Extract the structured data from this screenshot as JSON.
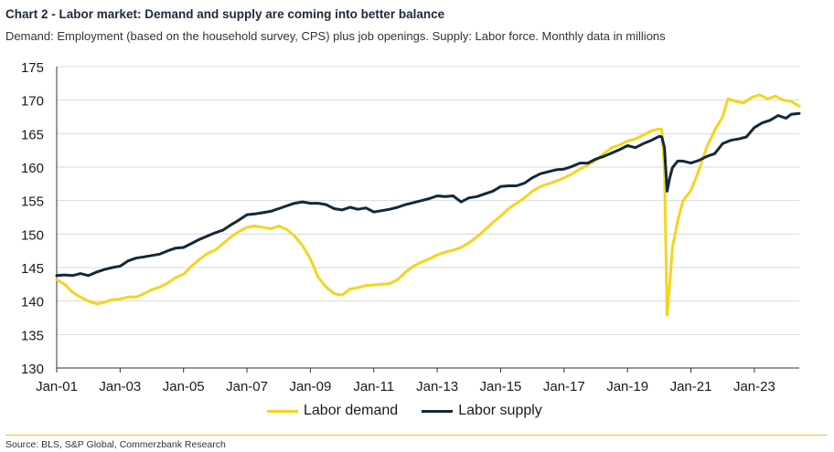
{
  "header": {
    "title": "Chart 2 - Labor market: Demand and supply are coming into better balance",
    "subtitle": "Demand: Employment (based on the household survey, CPS) plus job openings. Supply: Labor force. Monthly data in millions"
  },
  "footer": {
    "source": "Source: BLS, S&P Global, Commerzbank Research"
  },
  "colors": {
    "demand": "#f5d41f",
    "supply": "#13283b",
    "grid": "#d9d9d9",
    "rule": "#e8c619"
  },
  "chart_data": {
    "type": "line",
    "title": "Chart 2 - Labor market: Demand and supply are coming into better balance",
    "xlabel": "",
    "ylabel": "",
    "ylim": [
      130,
      175
    ],
    "yticks": [
      130,
      135,
      140,
      145,
      150,
      155,
      160,
      165,
      170,
      175
    ],
    "xlim": [
      "2001-01",
      "2024-06"
    ],
    "xticks": [
      "Jan-01",
      "Jan-03",
      "Jan-05",
      "Jan-07",
      "Jan-09",
      "Jan-11",
      "Jan-13",
      "Jan-15",
      "Jan-17",
      "Jan-19",
      "Jan-21",
      "Jan-23"
    ],
    "grid": "horizontal",
    "legend": "bottom",
    "series": [
      {
        "name": "Labor demand",
        "color": "#f5d41f",
        "points": [
          [
            "2001-01",
            143.2
          ],
          [
            "2001-04",
            142.5
          ],
          [
            "2001-07",
            141.3
          ],
          [
            "2001-10",
            140.6
          ],
          [
            "2002-01",
            140.0
          ],
          [
            "2002-04",
            139.6
          ],
          [
            "2002-07",
            139.8
          ],
          [
            "2002-10",
            140.2
          ],
          [
            "2003-01",
            140.3
          ],
          [
            "2003-04",
            140.6
          ],
          [
            "2003-07",
            140.6
          ],
          [
            "2003-10",
            141.1
          ],
          [
            "2004-01",
            141.7
          ],
          [
            "2004-04",
            142.1
          ],
          [
            "2004-07",
            142.7
          ],
          [
            "2004-10",
            143.5
          ],
          [
            "2005-01",
            144.0
          ],
          [
            "2005-04",
            145.2
          ],
          [
            "2005-07",
            146.2
          ],
          [
            "2005-10",
            147.1
          ],
          [
            "2006-01",
            147.6
          ],
          [
            "2006-04",
            148.6
          ],
          [
            "2006-07",
            149.6
          ],
          [
            "2006-10",
            150.4
          ],
          [
            "2007-01",
            151.0
          ],
          [
            "2007-04",
            151.2
          ],
          [
            "2007-07",
            151.0
          ],
          [
            "2007-10",
            150.8
          ],
          [
            "2008-01",
            151.2
          ],
          [
            "2008-04",
            150.7
          ],
          [
            "2008-07",
            149.7
          ],
          [
            "2008-10",
            148.3
          ],
          [
            "2009-01",
            146.3
          ],
          [
            "2009-04",
            143.5
          ],
          [
            "2009-07",
            142.1
          ],
          [
            "2009-10",
            141.1
          ],
          [
            "2010-01",
            140.9
          ],
          [
            "2010-04",
            141.8
          ],
          [
            "2010-07",
            142.0
          ],
          [
            "2010-10",
            142.3
          ],
          [
            "2011-01",
            142.4
          ],
          [
            "2011-04",
            142.5
          ],
          [
            "2011-07",
            142.6
          ],
          [
            "2011-10",
            143.2
          ],
          [
            "2012-01",
            144.3
          ],
          [
            "2012-04",
            145.2
          ],
          [
            "2012-07",
            145.8
          ],
          [
            "2012-10",
            146.3
          ],
          [
            "2013-01",
            146.9
          ],
          [
            "2013-04",
            147.3
          ],
          [
            "2013-07",
            147.6
          ],
          [
            "2013-10",
            148.0
          ],
          [
            "2014-01",
            148.7
          ],
          [
            "2014-04",
            149.6
          ],
          [
            "2014-07",
            150.6
          ],
          [
            "2014-10",
            151.7
          ],
          [
            "2015-01",
            152.7
          ],
          [
            "2015-04",
            153.8
          ],
          [
            "2015-07",
            154.6
          ],
          [
            "2015-10",
            155.4
          ],
          [
            "2016-01",
            156.4
          ],
          [
            "2016-04",
            157.1
          ],
          [
            "2016-07",
            157.5
          ],
          [
            "2016-10",
            157.9
          ],
          [
            "2017-01",
            158.4
          ],
          [
            "2017-04",
            159.0
          ],
          [
            "2017-07",
            159.7
          ],
          [
            "2017-10",
            160.3
          ],
          [
            "2018-01",
            161.0
          ],
          [
            "2018-04",
            162.0
          ],
          [
            "2018-07",
            162.9
          ],
          [
            "2018-10",
            163.3
          ],
          [
            "2019-01",
            163.9
          ],
          [
            "2019-04",
            164.2
          ],
          [
            "2019-07",
            164.8
          ],
          [
            "2019-10",
            165.4
          ],
          [
            "2020-01",
            165.7
          ],
          [
            "2020-02",
            165.6
          ],
          [
            "2020-03",
            159.5
          ],
          [
            "2020-04",
            137.9
          ],
          [
            "2020-05",
            142.5
          ],
          [
            "2020-06",
            148.0
          ],
          [
            "2020-08",
            152.0
          ],
          [
            "2020-10",
            155.0
          ],
          [
            "2021-01",
            156.5
          ],
          [
            "2021-04",
            159.5
          ],
          [
            "2021-07",
            163.0
          ],
          [
            "2021-10",
            165.5
          ],
          [
            "2022-01",
            167.5
          ],
          [
            "2022-03",
            170.2
          ],
          [
            "2022-06",
            169.8
          ],
          [
            "2022-09",
            169.6
          ],
          [
            "2022-12",
            170.4
          ],
          [
            "2023-03",
            170.8
          ],
          [
            "2023-06",
            170.2
          ],
          [
            "2023-09",
            170.6
          ],
          [
            "2023-12",
            170.0
          ],
          [
            "2024-03",
            169.8
          ],
          [
            "2024-06",
            169.1
          ]
        ]
      },
      {
        "name": "Labor supply",
        "color": "#13283b",
        "points": [
          [
            "2001-01",
            143.8
          ],
          [
            "2001-04",
            143.9
          ],
          [
            "2001-07",
            143.8
          ],
          [
            "2001-10",
            144.1
          ],
          [
            "2002-01",
            143.8
          ],
          [
            "2002-04",
            144.3
          ],
          [
            "2002-07",
            144.7
          ],
          [
            "2002-10",
            145.0
          ],
          [
            "2003-01",
            145.2
          ],
          [
            "2003-04",
            146.0
          ],
          [
            "2003-07",
            146.4
          ],
          [
            "2003-10",
            146.6
          ],
          [
            "2004-01",
            146.8
          ],
          [
            "2004-04",
            147.0
          ],
          [
            "2004-07",
            147.5
          ],
          [
            "2004-10",
            147.9
          ],
          [
            "2005-01",
            148.0
          ],
          [
            "2005-04",
            148.6
          ],
          [
            "2005-07",
            149.2
          ],
          [
            "2005-10",
            149.7
          ],
          [
            "2006-01",
            150.2
          ],
          [
            "2006-04",
            150.6
          ],
          [
            "2006-07",
            151.4
          ],
          [
            "2006-10",
            152.1
          ],
          [
            "2007-01",
            152.9
          ],
          [
            "2007-04",
            153.0
          ],
          [
            "2007-07",
            153.2
          ],
          [
            "2007-10",
            153.4
          ],
          [
            "2008-01",
            153.8
          ],
          [
            "2008-04",
            154.2
          ],
          [
            "2008-07",
            154.6
          ],
          [
            "2008-10",
            154.8
          ],
          [
            "2009-01",
            154.6
          ],
          [
            "2009-04",
            154.6
          ],
          [
            "2009-07",
            154.4
          ],
          [
            "2009-10",
            153.8
          ],
          [
            "2010-01",
            153.6
          ],
          [
            "2010-04",
            154.0
          ],
          [
            "2010-07",
            153.7
          ],
          [
            "2010-10",
            153.9
          ],
          [
            "2011-01",
            153.3
          ],
          [
            "2011-04",
            153.5
          ],
          [
            "2011-07",
            153.7
          ],
          [
            "2011-10",
            154.0
          ],
          [
            "2012-01",
            154.4
          ],
          [
            "2012-04",
            154.7
          ],
          [
            "2012-07",
            155.0
          ],
          [
            "2012-10",
            155.3
          ],
          [
            "2013-01",
            155.7
          ],
          [
            "2013-04",
            155.6
          ],
          [
            "2013-07",
            155.7
          ],
          [
            "2013-10",
            154.8
          ],
          [
            "2014-01",
            155.4
          ],
          [
            "2014-04",
            155.6
          ],
          [
            "2014-07",
            156.0
          ],
          [
            "2014-10",
            156.4
          ],
          [
            "2015-01",
            157.1
          ],
          [
            "2015-04",
            157.2
          ],
          [
            "2015-07",
            157.2
          ],
          [
            "2015-10",
            157.6
          ],
          [
            "2016-01",
            158.4
          ],
          [
            "2016-04",
            159.0
          ],
          [
            "2016-07",
            159.3
          ],
          [
            "2016-10",
            159.6
          ],
          [
            "2017-01",
            159.7
          ],
          [
            "2017-04",
            160.1
          ],
          [
            "2017-07",
            160.6
          ],
          [
            "2017-10",
            160.6
          ],
          [
            "2018-01",
            161.2
          ],
          [
            "2018-04",
            161.6
          ],
          [
            "2018-07",
            162.1
          ],
          [
            "2018-10",
            162.6
          ],
          [
            "2019-01",
            163.2
          ],
          [
            "2019-04",
            162.9
          ],
          [
            "2019-07",
            163.5
          ],
          [
            "2019-10",
            164.0
          ],
          [
            "2020-01",
            164.6
          ],
          [
            "2020-02",
            164.5
          ],
          [
            "2020-03",
            162.9
          ],
          [
            "2020-04",
            156.4
          ],
          [
            "2020-05",
            158.4
          ],
          [
            "2020-06",
            159.9
          ],
          [
            "2020-08",
            160.9
          ],
          [
            "2020-10",
            160.9
          ],
          [
            "2021-01",
            160.6
          ],
          [
            "2021-04",
            161.0
          ],
          [
            "2021-07",
            161.6
          ],
          [
            "2021-10",
            162.0
          ],
          [
            "2022-01",
            163.5
          ],
          [
            "2022-04",
            164.0
          ],
          [
            "2022-07",
            164.2
          ],
          [
            "2022-10",
            164.5
          ],
          [
            "2023-01",
            165.9
          ],
          [
            "2023-04",
            166.6
          ],
          [
            "2023-07",
            167.0
          ],
          [
            "2023-10",
            167.7
          ],
          [
            "2024-01",
            167.3
          ],
          [
            "2024-03",
            167.9
          ],
          [
            "2024-06",
            168.0
          ]
        ]
      }
    ]
  }
}
